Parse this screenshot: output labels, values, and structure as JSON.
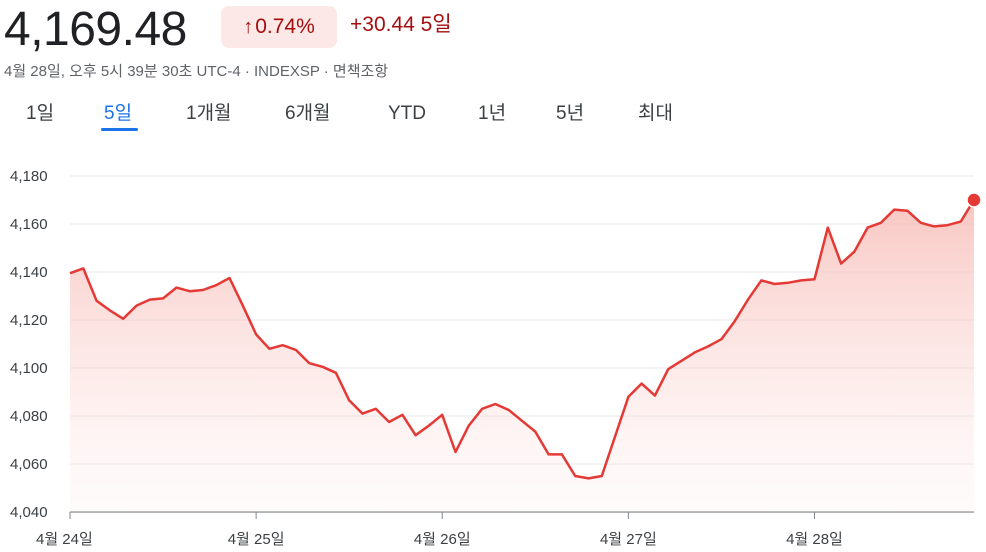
{
  "header": {
    "price": "4,169.48",
    "percent_change": "0.74%",
    "arrow": "↑",
    "abs_change": "+30.44 5일",
    "meta": "4월 28일, 오후 5시 39분 30초 UTC-4 · INDEXSP · 면책조항"
  },
  "tabs": [
    {
      "label": "1일"
    },
    {
      "label": "5일"
    },
    {
      "label": "1개월"
    },
    {
      "label": "6개월"
    },
    {
      "label": "YTD"
    },
    {
      "label": "1년"
    },
    {
      "label": "5년"
    },
    {
      "label": "최대"
    }
  ],
  "colors": {
    "line": "#e53935",
    "fill": "#f8c6c2",
    "accent": "#1a73e8"
  },
  "chart_data": {
    "type": "area",
    "ylim": [
      4040,
      4180
    ],
    "yticks": [
      "4,180",
      "4,160",
      "4,140",
      "4,120",
      "4,100",
      "4,080",
      "4,060",
      "4,040"
    ],
    "ytick_values": [
      4180,
      4160,
      4140,
      4120,
      4100,
      4080,
      4060,
      4040
    ],
    "xticks": [
      {
        "label": "4월 24일",
        "index": 0
      },
      {
        "label": "4월 25일",
        "index": 14
      },
      {
        "label": "4월 26일",
        "index": 28
      },
      {
        "label": "4월 27일",
        "index": 42
      },
      {
        "label": "4월 28일",
        "index": 56
      }
    ],
    "n_points": 69,
    "series": [
      {
        "values": [
          4139.5,
          4141.5,
          4128,
          4124,
          4120.5,
          4126,
          4128.5,
          4129,
          4133.5,
          4132,
          4132.5,
          4134.5,
          4137.5,
          4126,
          4114,
          4108,
          4109.5,
          4107.5,
          4102,
          4100.5,
          4098,
          4086.5,
          4081,
          4083,
          4077.5,
          4080.5,
          4072,
          4076,
          4080.5,
          4065,
          4076,
          4083,
          4085,
          4082.5,
          4078,
          4073.5,
          4064,
          4064,
          4055,
          4054,
          4055,
          4071.5,
          4088,
          4093.5,
          4088.5,
          4099.5,
          4103,
          4106.5,
          4109,
          4112,
          4119.5,
          4128.5,
          4136.5,
          4135,
          4135.5,
          4136.5,
          4137,
          4158.5,
          4143.5,
          4148.5,
          4158.5,
          4160.5,
          4166,
          4165.5,
          4160.5,
          4159,
          4159.5,
          4161,
          4170
        ]
      }
    ]
  }
}
